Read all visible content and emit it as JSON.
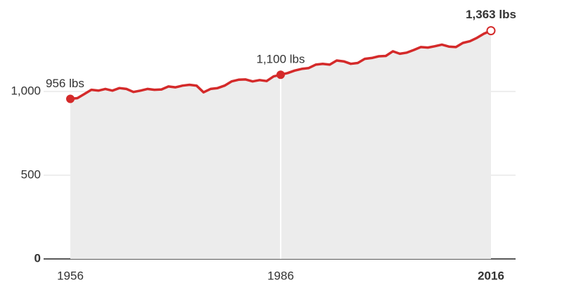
{
  "chart_data": {
    "type": "line",
    "x": [
      1956,
      1957,
      1958,
      1959,
      1960,
      1961,
      1962,
      1963,
      1964,
      1965,
      1966,
      1967,
      1968,
      1969,
      1970,
      1971,
      1972,
      1973,
      1974,
      1975,
      1976,
      1977,
      1978,
      1979,
      1980,
      1981,
      1982,
      1983,
      1984,
      1985,
      1986,
      1987,
      1988,
      1989,
      1990,
      1991,
      1992,
      1993,
      1994,
      1995,
      1996,
      1997,
      1998,
      1999,
      2000,
      2001,
      2002,
      2003,
      2004,
      2005,
      2006,
      2007,
      2008,
      2009,
      2010,
      2011,
      2012,
      2013,
      2014,
      2015,
      2016
    ],
    "values": [
      956,
      960,
      985,
      1010,
      1005,
      1015,
      1005,
      1020,
      1015,
      997,
      1005,
      1015,
      1010,
      1012,
      1030,
      1025,
      1035,
      1040,
      1035,
      995,
      1015,
      1020,
      1035,
      1060,
      1070,
      1072,
      1060,
      1068,
      1062,
      1090,
      1100,
      1110,
      1125,
      1135,
      1140,
      1160,
      1165,
      1160,
      1185,
      1180,
      1165,
      1170,
      1195,
      1200,
      1210,
      1212,
      1240,
      1225,
      1232,
      1248,
      1265,
      1262,
      1270,
      1280,
      1268,
      1265,
      1290,
      1300,
      1320,
      1345,
      1363
    ],
    "value_labels": [
      "956 lbs",
      null,
      null,
      null,
      null,
      null,
      null,
      null,
      null,
      null,
      null,
      null,
      null,
      null,
      null,
      null,
      null,
      null,
      null,
      null,
      null,
      null,
      null,
      null,
      null,
      null,
      null,
      null,
      null,
      null,
      "1,100 lbs",
      null,
      null,
      null,
      null,
      null,
      null,
      null,
      null,
      null,
      null,
      null,
      null,
      null,
      null,
      null,
      null,
      null,
      null,
      null,
      null,
      null,
      null,
      null,
      null,
      null,
      null,
      null,
      null,
      null,
      "1,363 lbs"
    ],
    "color": "#d42a2a",
    "area_color": "#ececec",
    "xlim": [
      1956,
      2016
    ],
    "xticks": [
      1956,
      1986,
      2016
    ],
    "ylim": [
      0,
      1400
    ],
    "yticks": [
      0,
      500,
      {
        "value": 1000,
        "label": "1,000"
      }
    ],
    "grid": true
  }
}
